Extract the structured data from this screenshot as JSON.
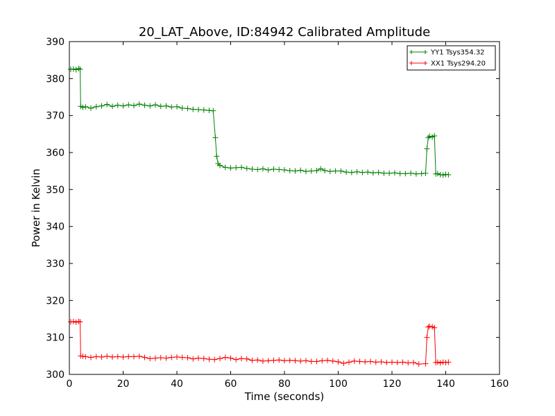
{
  "chart_data": {
    "type": "line",
    "title": "20_LAT_Above, ID:84942 Calibrated Amplitude",
    "xlabel": "Time (seconds)",
    "ylabel": "Power in Kelvin",
    "xlim": [
      0,
      160
    ],
    "ylim": [
      300,
      390
    ],
    "xticks": [
      0,
      20,
      40,
      60,
      80,
      100,
      120,
      140,
      160
    ],
    "yticks": [
      300,
      310,
      320,
      330,
      340,
      350,
      360,
      370,
      380,
      390
    ],
    "grid": false,
    "legend_position": "top-right",
    "marker": "+",
    "series": [
      {
        "name": "YY1 Tsys354.32",
        "color": "#008000",
        "points": [
          [
            0.5,
            382.5
          ],
          [
            1.5,
            382.6
          ],
          [
            2.5,
            382.4
          ],
          [
            3.5,
            382.7
          ],
          [
            4.0,
            382.5
          ],
          [
            4.2,
            372.5
          ],
          [
            5,
            372.2
          ],
          [
            6,
            372.4
          ],
          [
            8,
            372.0
          ],
          [
            10,
            372.4
          ],
          [
            12,
            372.6
          ],
          [
            14,
            373.0
          ],
          [
            16,
            372.5
          ],
          [
            18,
            372.8
          ],
          [
            20,
            372.6
          ],
          [
            22,
            372.9
          ],
          [
            24,
            372.7
          ],
          [
            26,
            373.1
          ],
          [
            28,
            372.8
          ],
          [
            30,
            372.6
          ],
          [
            32,
            372.9
          ],
          [
            34,
            372.5
          ],
          [
            36,
            372.6
          ],
          [
            38,
            372.3
          ],
          [
            40,
            372.4
          ],
          [
            42,
            372.0
          ],
          [
            44,
            371.9
          ],
          [
            46,
            371.7
          ],
          [
            48,
            371.6
          ],
          [
            50,
            371.5
          ],
          [
            52,
            371.4
          ],
          [
            53.5,
            371.3
          ],
          [
            54.3,
            364.0
          ],
          [
            54.8,
            359.0
          ],
          [
            55.3,
            357.0
          ],
          [
            56,
            356.5
          ],
          [
            58,
            356.0
          ],
          [
            60,
            355.8
          ],
          [
            62,
            355.9
          ],
          [
            64,
            356.0
          ],
          [
            66,
            355.7
          ],
          [
            68,
            355.5
          ],
          [
            70,
            355.4
          ],
          [
            72,
            355.6
          ],
          [
            74,
            355.3
          ],
          [
            76,
            355.5
          ],
          [
            78,
            355.4
          ],
          [
            80,
            355.3
          ],
          [
            82,
            355.1
          ],
          [
            84,
            355.0
          ],
          [
            86,
            355.2
          ],
          [
            88,
            354.9
          ],
          [
            90,
            355.0
          ],
          [
            92,
            355.1
          ],
          [
            93.5,
            355.6
          ],
          [
            95,
            355.1
          ],
          [
            97,
            354.9
          ],
          [
            99,
            355.0
          ],
          [
            101,
            355.0
          ],
          [
            103,
            354.7
          ],
          [
            105,
            354.6
          ],
          [
            107,
            354.8
          ],
          [
            109,
            354.6
          ],
          [
            111,
            354.7
          ],
          [
            113,
            354.5
          ],
          [
            115,
            354.6
          ],
          [
            117,
            354.4
          ],
          [
            119,
            354.4
          ],
          [
            121,
            354.5
          ],
          [
            123,
            354.3
          ],
          [
            125,
            354.3
          ],
          [
            127,
            354.4
          ],
          [
            129,
            354.2
          ],
          [
            131,
            354.3
          ],
          [
            132.5,
            354.4
          ],
          [
            133.0,
            361.0
          ],
          [
            133.5,
            364.0
          ],
          [
            134,
            364.4
          ],
          [
            135,
            364.2
          ],
          [
            135.8,
            364.5
          ],
          [
            136.3,
            354.2
          ],
          [
            137,
            354.3
          ],
          [
            138,
            354.0
          ],
          [
            139,
            353.9
          ],
          [
            140,
            354.1
          ],
          [
            141,
            354.0
          ]
        ]
      },
      {
        "name": "XX1 Tsys294.20",
        "color": "#ff0000",
        "points": [
          [
            0.5,
            314.2
          ],
          [
            1.5,
            314.3
          ],
          [
            2.5,
            314.1
          ],
          [
            3.5,
            314.3
          ],
          [
            4.0,
            314.2
          ],
          [
            4.2,
            305.0
          ],
          [
            5,
            304.9
          ],
          [
            6,
            304.8
          ],
          [
            8,
            304.6
          ],
          [
            10,
            304.8
          ],
          [
            12,
            304.7
          ],
          [
            14,
            304.9
          ],
          [
            16,
            304.7
          ],
          [
            18,
            304.8
          ],
          [
            20,
            304.7
          ],
          [
            22,
            304.8
          ],
          [
            24,
            304.8
          ],
          [
            26,
            304.9
          ],
          [
            28,
            304.6
          ],
          [
            30,
            304.3
          ],
          [
            32,
            304.4
          ],
          [
            34,
            304.5
          ],
          [
            36,
            304.4
          ],
          [
            38,
            304.6
          ],
          [
            40,
            304.7
          ],
          [
            42,
            304.6
          ],
          [
            44,
            304.5
          ],
          [
            46,
            304.2
          ],
          [
            48,
            304.4
          ],
          [
            50,
            304.3
          ],
          [
            52,
            304.1
          ],
          [
            54,
            304.0
          ],
          [
            56,
            304.3
          ],
          [
            58,
            304.6
          ],
          [
            60,
            304.4
          ],
          [
            62,
            304.0
          ],
          [
            64,
            304.3
          ],
          [
            66,
            304.2
          ],
          [
            68,
            303.8
          ],
          [
            70,
            303.9
          ],
          [
            72,
            303.6
          ],
          [
            74,
            303.7
          ],
          [
            76,
            303.8
          ],
          [
            78,
            303.9
          ],
          [
            80,
            303.7
          ],
          [
            82,
            303.8
          ],
          [
            84,
            303.7
          ],
          [
            86,
            303.6
          ],
          [
            88,
            303.7
          ],
          [
            90,
            303.5
          ],
          [
            92,
            303.5
          ],
          [
            94,
            303.7
          ],
          [
            96,
            303.8
          ],
          [
            98,
            303.6
          ],
          [
            100,
            303.4
          ],
          [
            102,
            303.0
          ],
          [
            104,
            303.3
          ],
          [
            106,
            303.6
          ],
          [
            108,
            303.5
          ],
          [
            110,
            303.4
          ],
          [
            112,
            303.5
          ],
          [
            114,
            303.3
          ],
          [
            116,
            303.4
          ],
          [
            118,
            303.2
          ],
          [
            120,
            303.3
          ],
          [
            122,
            303.2
          ],
          [
            124,
            303.3
          ],
          [
            126,
            303.1
          ],
          [
            128,
            303.2
          ],
          [
            130,
            302.8
          ],
          [
            132.5,
            302.9
          ],
          [
            133.0,
            310.0
          ],
          [
            133.5,
            312.8
          ],
          [
            134,
            313.0
          ],
          [
            135,
            312.9
          ],
          [
            135.8,
            312.6
          ],
          [
            136.3,
            303.2
          ],
          [
            137,
            303.3
          ],
          [
            138,
            303.1
          ],
          [
            139,
            303.3
          ],
          [
            140,
            303.2
          ],
          [
            141,
            303.3
          ]
        ]
      }
    ]
  }
}
